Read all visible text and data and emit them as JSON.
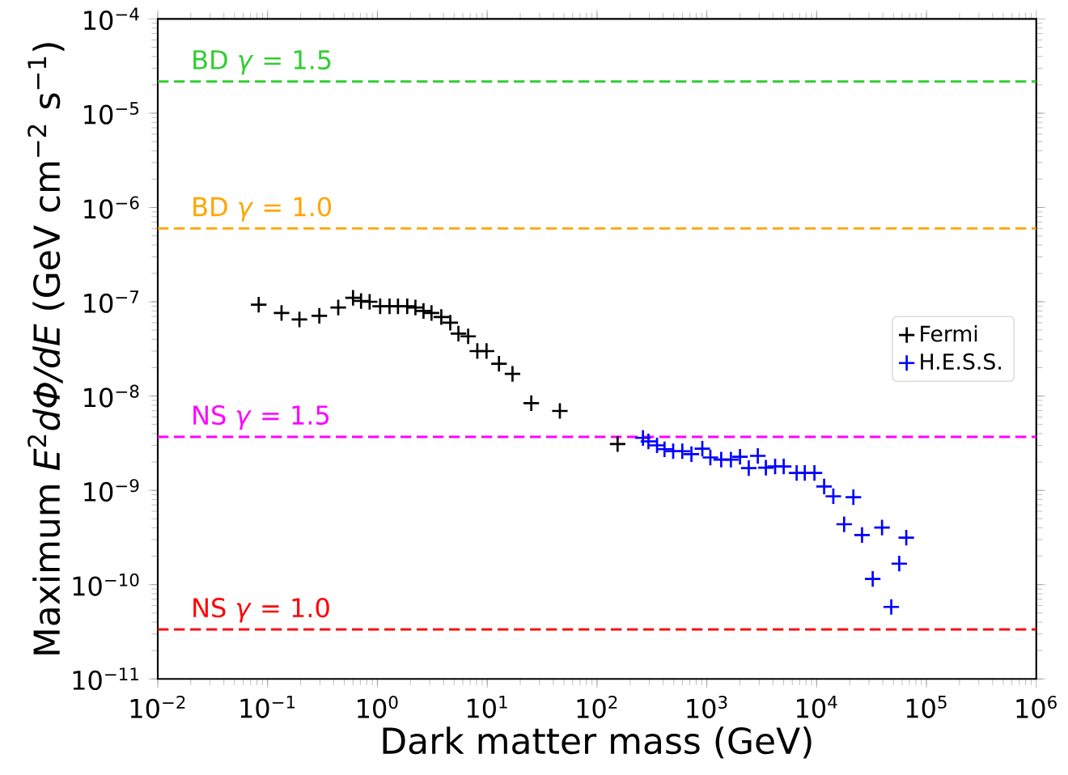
{
  "chart_data": {
    "type": "scatter",
    "xlabel": "Dark matter mass (GeV)",
    "ylabel": "Maximum *E*$^{2}$*dΦ/dE* (GeV cm$^{−2}$ s$^{−1}$)",
    "log": "xy",
    "marker": "cross",
    "legend": "right",
    "xlim": [
      0.01,
      1000000
    ],
    "xticks": [
      {
        "value": 0.01,
        "label": "10$^{−2}$"
      },
      {
        "value": 0.1,
        "label": "10$^{−1}$"
      },
      {
        "value": 1,
        "label": "10$^{0}$"
      },
      {
        "value": 10,
        "label": "10$^{1}$"
      },
      {
        "value": 100,
        "label": "10$^{2}$"
      },
      {
        "value": 1000,
        "label": "10$^{3}$"
      },
      {
        "value": 10000,
        "label": "10$^{4}$"
      },
      {
        "value": 100000,
        "label": "10$^{5}$"
      },
      {
        "value": 1000000,
        "label": "10$^{6}$"
      }
    ],
    "ylim": [
      1e-11,
      0.0001
    ],
    "yticks": [
      {
        "value": 1e-11,
        "label": "10$^{−11}$"
      },
      {
        "value": 1e-10,
        "label": "10$^{−10}$"
      },
      {
        "value": 1e-09,
        "label": "10$^{−9}$"
      },
      {
        "value": 1e-08,
        "label": "10$^{−8}$"
      },
      {
        "value": 1e-07,
        "label": "10$^{−7}$"
      },
      {
        "value": 1e-06,
        "label": "10$^{−6}$"
      },
      {
        "value": 1e-05,
        "label": "10$^{−5}$"
      },
      {
        "value": 0.0001,
        "label": "10$^{−4}$"
      }
    ],
    "series": [
      {
        "name": "Fermi",
        "color": "#000000",
        "x": [
          0.083,
          0.134,
          0.195,
          0.296,
          0.44,
          0.6,
          0.71,
          0.85,
          1.06,
          1.29,
          1.54,
          1.87,
          2.22,
          2.63,
          3.11,
          3.82,
          4.61,
          5.47,
          6.71,
          8.13,
          9.86,
          12.8,
          17.0,
          25.2,
          45.9,
          154
        ],
        "values": [
          9.3e-08,
          7.6e-08,
          6.5e-08,
          7.1e-08,
          8.7e-08,
          1.1e-07,
          1.02e-07,
          1e-07,
          8.95e-08,
          8.95e-08,
          8.95e-08,
          8.95e-08,
          8.7e-08,
          8e-08,
          7.6e-08,
          6.9e-08,
          6e-08,
          4.6e-08,
          4.3e-08,
          3e-08,
          3e-08,
          2.2e-08,
          1.72e-08,
          8.4e-09,
          6.95e-09,
          3.1e-09
        ]
      },
      {
        "name": "H.E.S.S.",
        "color": "#0000ff",
        "x": [
          262,
          294,
          352,
          412,
          494,
          598,
          724,
          910,
          1077,
          1352,
          1656,
          2005,
          2409,
          2913,
          3451,
          4188,
          5012,
          6577,
          7798,
          9550,
          11700,
          14190,
          17800,
          21600,
          25900,
          32400,
          39400,
          47800,
          56500,
          65500
        ],
        "values": [
          3.6e-09,
          3.3e-09,
          3e-09,
          2.73e-09,
          2.6e-09,
          2.6e-09,
          2.42e-09,
          2.77e-09,
          2.23e-09,
          2.12e-09,
          2.12e-09,
          2.27e-09,
          1.72e-09,
          2.32e-09,
          1.74e-09,
          1.79e-09,
          1.79e-09,
          1.53e-09,
          1.53e-09,
          1.53e-09,
          1.1e-09,
          8.65e-10,
          4.37e-10,
          8.45e-10,
          3.36e-10,
          1.15e-10,
          4.03e-10,
          5.8e-11,
          1.67e-10,
          3.15e-10
        ]
      }
    ],
    "ref_lines": [
      {
        "axis": "y",
        "value": 2.17e-05,
        "color": "#32cd32",
        "line_style": "dashed"
      },
      {
        "axis": "y",
        "value": 6e-07,
        "color": "#ffa500",
        "line_style": "dashed"
      },
      {
        "axis": "y",
        "value": 3.7e-09,
        "color": "#ff00ff",
        "line_style": "dashed"
      },
      {
        "axis": "y",
        "value": 3.35e-11,
        "color": "#ff0000",
        "line_style": "dashed"
      }
    ],
    "annotations": [
      {
        "text": "BD *γ* = 1.5",
        "y": 2.17e-05
      },
      {
        "text": "BD *γ* = 1.0",
        "y": 6e-07
      },
      {
        "text": "NS *γ* = 1.5",
        "y": 3.7e-09
      },
      {
        "text": "NS *γ* = 1.0",
        "y": 3.35e-11
      }
    ]
  }
}
